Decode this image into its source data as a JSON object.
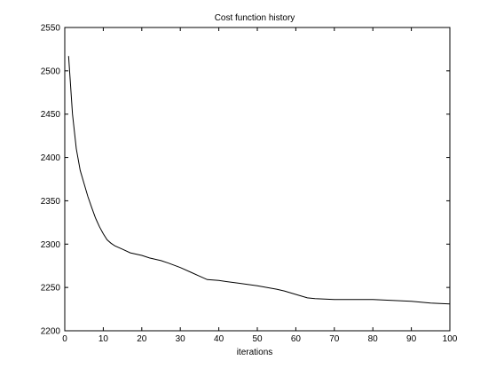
{
  "chart_data": {
    "type": "line",
    "title": "Cost function history",
    "xlabel": "iterations",
    "ylabel": "",
    "xlim": [
      0,
      100
    ],
    "ylim": [
      2200,
      2550
    ],
    "xticks": [
      0,
      10,
      20,
      30,
      40,
      50,
      60,
      70,
      80,
      90,
      100
    ],
    "yticks": [
      2200,
      2250,
      2300,
      2350,
      2400,
      2450,
      2500,
      2550
    ],
    "grid": false,
    "line_color": "#000000",
    "series": [
      {
        "x": [
          1,
          2,
          3,
          4,
          5,
          6,
          7,
          8,
          9,
          10,
          11,
          12,
          13,
          15,
          17,
          20,
          22,
          25,
          27,
          30,
          33,
          35,
          37,
          40,
          45,
          50,
          55,
          57,
          60,
          63,
          65,
          70,
          75,
          80,
          85,
          90,
          95,
          100
        ],
        "y": [
          2517,
          2450,
          2410,
          2385,
          2370,
          2355,
          2342,
          2330,
          2320,
          2312,
          2305,
          2301,
          2298,
          2294,
          2290,
          2287,
          2284,
          2281,
          2278,
          2273,
          2267,
          2263,
          2259,
          2258,
          2255,
          2252,
          2248,
          2246,
          2242,
          2238,
          2237,
          2236,
          2236,
          2236,
          2235,
          2234,
          2232,
          2231
        ]
      }
    ]
  }
}
